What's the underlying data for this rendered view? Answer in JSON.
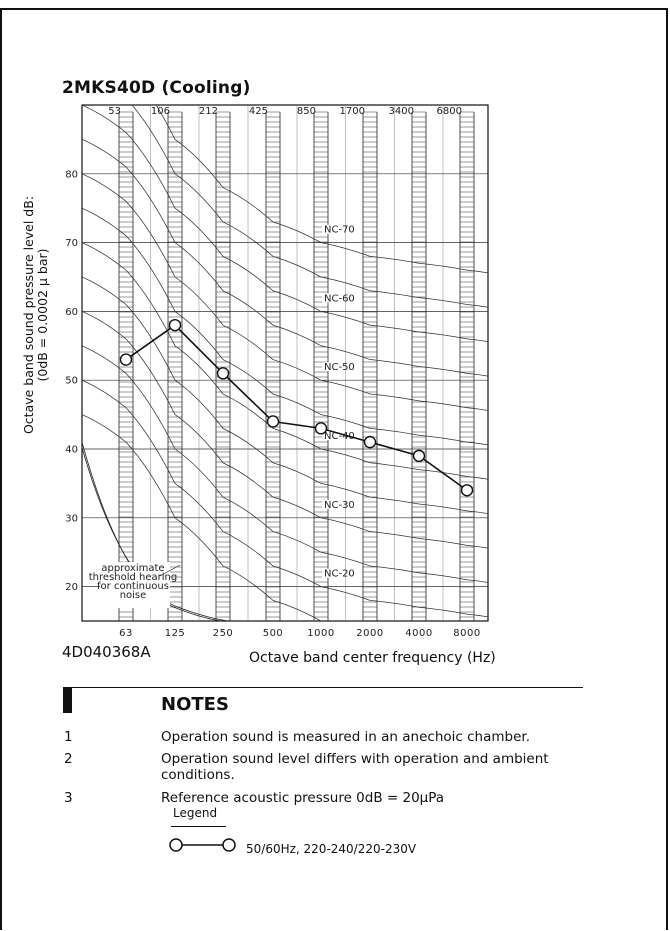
{
  "page": {
    "title": "2MKS40D  (Cooling)",
    "doc_number": "4D040368A"
  },
  "notes": {
    "heading": "NOTES",
    "items": [
      {
        "num": "1",
        "text": "Operation sound is measured in an anechoic chamber."
      },
      {
        "num": "2",
        "text": "Operation sound level differs with operation and ambient conditions."
      },
      {
        "num": "3",
        "text": "Reference acoustic pressure 0dB = 20µPa"
      }
    ]
  },
  "legend": {
    "title": "Legend",
    "entry": "50/60Hz, 220-240/220-230V",
    "marker": "open-circle-line"
  },
  "chart_data": {
    "type": "line",
    "title": "2MKS40D  (Cooling)",
    "xlabel": "Octave band center frequency (Hz)",
    "ylabel": "Octave band sound pressure level dB:(0dB = 0.0002 µ bar)",
    "x_bottom_ticks": [
      "63",
      "125",
      "250",
      "500",
      "1000",
      "2000",
      "4000",
      "8000"
    ],
    "x_top_ticks": [
      "53",
      "106",
      "212",
      "425",
      "850",
      "1700",
      "3400",
      "6800"
    ],
    "y_ticks": [
      20,
      30,
      40,
      50,
      60,
      70,
      80
    ],
    "ylim": [
      15,
      90
    ],
    "grid": true,
    "threshold_label": "approximate threshold hearing for continuous noise",
    "nc_labels": [
      "NC-70",
      "NC-60",
      "NC-50",
      "NC-40",
      "NC-30",
      "NC-20"
    ],
    "nc_curve_levels": [
      15,
      20,
      25,
      30,
      35,
      40,
      45,
      50,
      55,
      60,
      65,
      70
    ],
    "series": [
      {
        "name": "50/60Hz, 220-240/220-230V",
        "x": [
          "63",
          "125",
          "250",
          "500",
          "1000",
          "2000",
          "4000",
          "8000"
        ],
        "values": [
          53,
          58,
          51,
          44,
          43,
          41,
          39,
          34
        ]
      }
    ],
    "colors": {
      "line": "#111111",
      "grid": "#333333"
    }
  }
}
